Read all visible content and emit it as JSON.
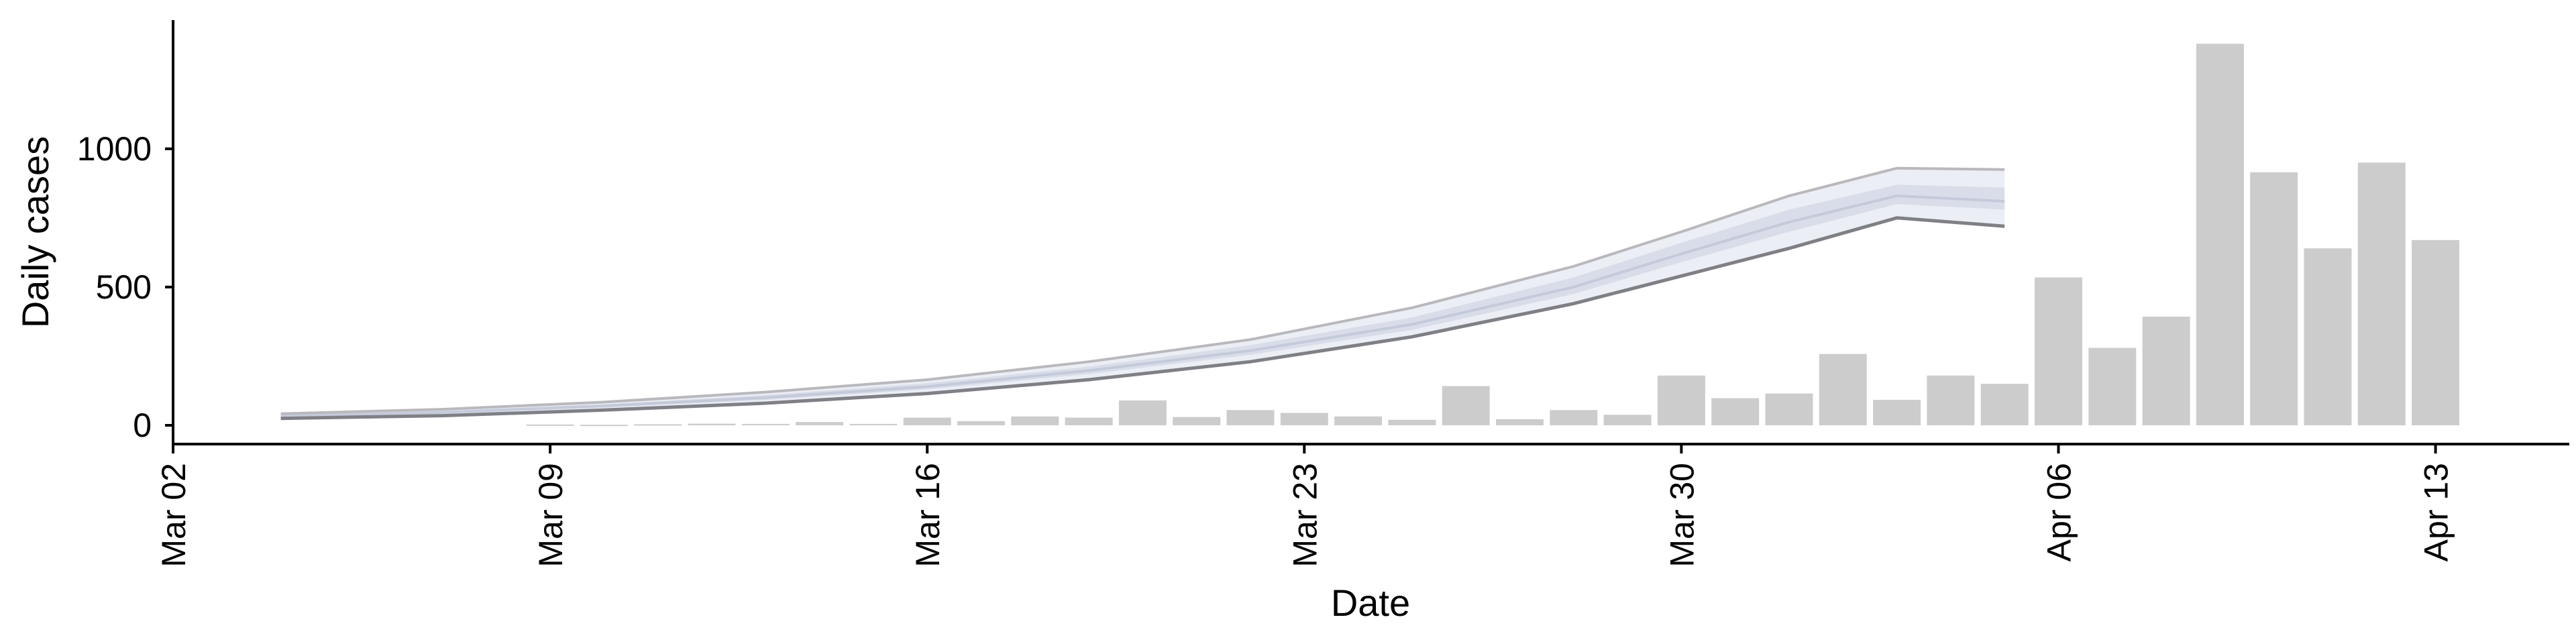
{
  "chart_data": {
    "type": "bar",
    "xlabel": "Date",
    "ylabel": "Daily cases",
    "x_ticks": [
      "Mar 02",
      "Mar 09",
      "Mar 16",
      "Mar 23",
      "Mar 30",
      "Apr 06",
      "Apr 13"
    ],
    "y_ticks": [
      0,
      500,
      1000
    ],
    "ylim": [
      -60,
      1450
    ],
    "xlim": [
      "2020-03-02",
      "2020-04-15"
    ],
    "grid": false,
    "legend": "none",
    "colors": {
      "bars": "#cccccc",
      "band_outer": "#eceef5",
      "band_inner": "#d9dde9",
      "median_line": "#c5cadb",
      "band_edge_lower": "#7f7f86",
      "band_edge_upper": "#b9b9bd"
    },
    "bars": [
      {
        "date": "2020-03-09",
        "value": 3
      },
      {
        "date": "2020-03-10",
        "value": 2
      },
      {
        "date": "2020-03-11",
        "value": 4
      },
      {
        "date": "2020-03-12",
        "value": 6
      },
      {
        "date": "2020-03-13",
        "value": 5
      },
      {
        "date": "2020-03-14",
        "value": 12
      },
      {
        "date": "2020-03-15",
        "value": 5
      },
      {
        "date": "2020-03-16",
        "value": 28
      },
      {
        "date": "2020-03-17",
        "value": 15
      },
      {
        "date": "2020-03-18",
        "value": 32
      },
      {
        "date": "2020-03-19",
        "value": 28
      },
      {
        "date": "2020-03-20",
        "value": 90
      },
      {
        "date": "2020-03-21",
        "value": 30
      },
      {
        "date": "2020-03-22",
        "value": 55
      },
      {
        "date": "2020-03-23",
        "value": 45
      },
      {
        "date": "2020-03-24",
        "value": 32
      },
      {
        "date": "2020-03-25",
        "value": 20
      },
      {
        "date": "2020-03-26",
        "value": 142
      },
      {
        "date": "2020-03-27",
        "value": 22
      },
      {
        "date": "2020-03-28",
        "value": 55
      },
      {
        "date": "2020-03-29",
        "value": 38
      },
      {
        "date": "2020-03-30",
        "value": 180
      },
      {
        "date": "2020-03-31",
        "value": 98
      },
      {
        "date": "2020-04-01",
        "value": 115
      },
      {
        "date": "2020-04-02",
        "value": 258
      },
      {
        "date": "2020-04-03",
        "value": 92
      },
      {
        "date": "2020-04-04",
        "value": 180
      },
      {
        "date": "2020-04-05",
        "value": 150
      },
      {
        "date": "2020-04-06",
        "value": 535
      },
      {
        "date": "2020-04-07",
        "value": 280
      },
      {
        "date": "2020-04-08",
        "value": 393
      },
      {
        "date": "2020-04-09",
        "value": 1380
      },
      {
        "date": "2020-04-10",
        "value": 915
      },
      {
        "date": "2020-04-11",
        "value": 640
      },
      {
        "date": "2020-04-12",
        "value": 950
      },
      {
        "date": "2020-04-13",
        "value": 670
      }
    ],
    "band": {
      "dates": [
        "2020-03-04",
        "2020-03-07",
        "2020-03-10",
        "2020-03-13",
        "2020-03-16",
        "2020-03-19",
        "2020-03-22",
        "2020-03-25",
        "2020-03-28",
        "2020-03-30",
        "2020-04-01",
        "2020-04-03",
        "2020-04-05"
      ],
      "lower": [
        25,
        35,
        55,
        80,
        115,
        165,
        230,
        320,
        440,
        540,
        640,
        750,
        720
      ],
      "lower_mid": [
        30,
        42,
        64,
        92,
        130,
        185,
        255,
        345,
        475,
        590,
        700,
        800,
        780
      ],
      "median": [
        33,
        47,
        70,
        100,
        140,
        198,
        270,
        365,
        500,
        620,
        735,
        830,
        810
      ],
      "upper_mid": [
        36,
        52,
        76,
        110,
        152,
        212,
        290,
        390,
        535,
        660,
        780,
        870,
        860
      ],
      "upper": [
        42,
        58,
        84,
        120,
        165,
        230,
        310,
        425,
        575,
        700,
        830,
        930,
        925
      ]
    }
  }
}
